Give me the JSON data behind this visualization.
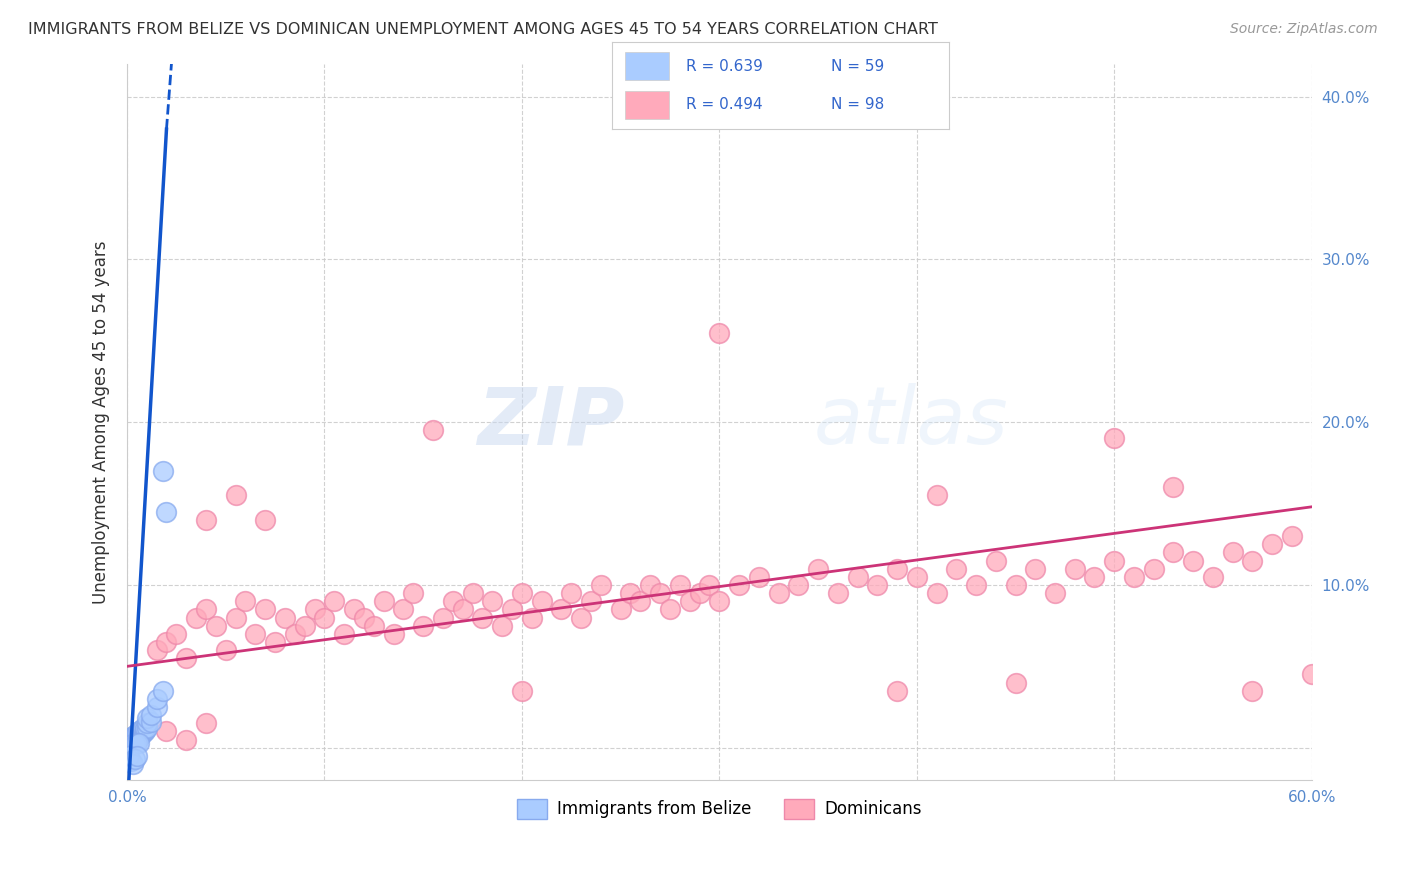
{
  "title": "IMMIGRANTS FROM BELIZE VS DOMINICAN UNEMPLOYMENT AMONG AGES 45 TO 54 YEARS CORRELATION CHART",
  "source": "Source: ZipAtlas.com",
  "ylabel": "Unemployment Among Ages 45 to 54 years",
  "xlim": [
    0.0,
    0.6
  ],
  "ylim": [
    -0.02,
    0.42
  ],
  "x_ticks": [
    0.0,
    0.1,
    0.2,
    0.3,
    0.4,
    0.5,
    0.6
  ],
  "x_tick_labels": [
    "0.0%",
    "",
    "",
    "",
    "",
    "",
    "60.0%"
  ],
  "y_ticks": [
    0.0,
    0.1,
    0.2,
    0.3,
    0.4
  ],
  "y_tick_labels": [
    "",
    "10.0%",
    "20.0%",
    "30.0%",
    "40.0%"
  ],
  "grid_color": "#cccccc",
  "background_color": "#ffffff",
  "belize_color": "#aaccff",
  "belize_edge_color": "#88aaee",
  "dominican_color": "#ffaabb",
  "dominican_edge_color": "#ee88aa",
  "belize_line_color": "#1155cc",
  "dominican_line_color": "#cc3377",
  "tick_color": "#5588cc",
  "legend_text_color": "#3366cc",
  "belize_scatter": [
    [
      0.001,
      0.002
    ],
    [
      0.001,
      0.003
    ],
    [
      0.001,
      0.004
    ],
    [
      0.002,
      0.002
    ],
    [
      0.002,
      0.003
    ],
    [
      0.002,
      0.004
    ],
    [
      0.002,
      0.005
    ],
    [
      0.002,
      0.006
    ],
    [
      0.003,
      0.003
    ],
    [
      0.003,
      0.004
    ],
    [
      0.003,
      0.005
    ],
    [
      0.003,
      0.006
    ],
    [
      0.003,
      0.007
    ],
    [
      0.004,
      0.004
    ],
    [
      0.004,
      0.005
    ],
    [
      0.004,
      0.006
    ],
    [
      0.004,
      0.007
    ],
    [
      0.004,
      0.008
    ],
    [
      0.005,
      0.005
    ],
    [
      0.005,
      0.006
    ],
    [
      0.005,
      0.007
    ],
    [
      0.005,
      0.008
    ],
    [
      0.005,
      0.009
    ],
    [
      0.006,
      0.006
    ],
    [
      0.006,
      0.007
    ],
    [
      0.006,
      0.008
    ],
    [
      0.006,
      0.009
    ],
    [
      0.006,
      0.01
    ],
    [
      0.007,
      0.008
    ],
    [
      0.007,
      0.009
    ],
    [
      0.007,
      0.01
    ],
    [
      0.007,
      0.011
    ],
    [
      0.008,
      0.009
    ],
    [
      0.008,
      0.01
    ],
    [
      0.008,
      0.011
    ],
    [
      0.008,
      0.012
    ],
    [
      0.009,
      0.01
    ],
    [
      0.009,
      0.011
    ],
    [
      0.009,
      0.012
    ],
    [
      0.01,
      0.012
    ],
    [
      0.01,
      0.015
    ],
    [
      0.01,
      0.018
    ],
    [
      0.012,
      0.016
    ],
    [
      0.012,
      0.02
    ],
    [
      0.015,
      0.025
    ],
    [
      0.015,
      0.03
    ],
    [
      0.018,
      0.035
    ],
    [
      0.018,
      0.17
    ],
    [
      0.02,
      0.145
    ],
    [
      0.001,
      0.001
    ],
    [
      0.002,
      0.001
    ],
    [
      0.003,
      0.002
    ],
    [
      0.004,
      0.002
    ],
    [
      0.005,
      0.003
    ],
    [
      0.006,
      0.003
    ],
    [
      0.001,
      -0.005
    ],
    [
      0.002,
      -0.008
    ],
    [
      0.003,
      -0.01
    ],
    [
      0.004,
      -0.007
    ],
    [
      0.005,
      -0.005
    ]
  ],
  "dominican_scatter": [
    [
      0.015,
      0.06
    ],
    [
      0.02,
      0.065
    ],
    [
      0.025,
      0.07
    ],
    [
      0.03,
      0.055
    ],
    [
      0.035,
      0.08
    ],
    [
      0.04,
      0.085
    ],
    [
      0.045,
      0.075
    ],
    [
      0.05,
      0.06
    ],
    [
      0.055,
      0.08
    ],
    [
      0.06,
      0.09
    ],
    [
      0.065,
      0.07
    ],
    [
      0.07,
      0.085
    ],
    [
      0.075,
      0.065
    ],
    [
      0.08,
      0.08
    ],
    [
      0.085,
      0.07
    ],
    [
      0.09,
      0.075
    ],
    [
      0.095,
      0.085
    ],
    [
      0.1,
      0.08
    ],
    [
      0.105,
      0.09
    ],
    [
      0.11,
      0.07
    ],
    [
      0.115,
      0.085
    ],
    [
      0.12,
      0.08
    ],
    [
      0.125,
      0.075
    ],
    [
      0.13,
      0.09
    ],
    [
      0.135,
      0.07
    ],
    [
      0.14,
      0.085
    ],
    [
      0.145,
      0.095
    ],
    [
      0.15,
      0.075
    ],
    [
      0.16,
      0.08
    ],
    [
      0.165,
      0.09
    ],
    [
      0.17,
      0.085
    ],
    [
      0.175,
      0.095
    ],
    [
      0.18,
      0.08
    ],
    [
      0.185,
      0.09
    ],
    [
      0.19,
      0.075
    ],
    [
      0.195,
      0.085
    ],
    [
      0.2,
      0.095
    ],
    [
      0.205,
      0.08
    ],
    [
      0.21,
      0.09
    ],
    [
      0.22,
      0.085
    ],
    [
      0.225,
      0.095
    ],
    [
      0.23,
      0.08
    ],
    [
      0.235,
      0.09
    ],
    [
      0.24,
      0.1
    ],
    [
      0.25,
      0.085
    ],
    [
      0.255,
      0.095
    ],
    [
      0.26,
      0.09
    ],
    [
      0.265,
      0.1
    ],
    [
      0.27,
      0.095
    ],
    [
      0.275,
      0.085
    ],
    [
      0.28,
      0.1
    ],
    [
      0.285,
      0.09
    ],
    [
      0.29,
      0.095
    ],
    [
      0.295,
      0.1
    ],
    [
      0.3,
      0.09
    ],
    [
      0.31,
      0.1
    ],
    [
      0.32,
      0.105
    ],
    [
      0.33,
      0.095
    ],
    [
      0.34,
      0.1
    ],
    [
      0.35,
      0.11
    ],
    [
      0.36,
      0.095
    ],
    [
      0.37,
      0.105
    ],
    [
      0.38,
      0.1
    ],
    [
      0.39,
      0.11
    ],
    [
      0.4,
      0.105
    ],
    [
      0.41,
      0.095
    ],
    [
      0.42,
      0.11
    ],
    [
      0.43,
      0.1
    ],
    [
      0.44,
      0.115
    ],
    [
      0.45,
      0.1
    ],
    [
      0.46,
      0.11
    ],
    [
      0.47,
      0.095
    ],
    [
      0.48,
      0.11
    ],
    [
      0.49,
      0.105
    ],
    [
      0.5,
      0.115
    ],
    [
      0.51,
      0.105
    ],
    [
      0.52,
      0.11
    ],
    [
      0.53,
      0.12
    ],
    [
      0.54,
      0.115
    ],
    [
      0.55,
      0.105
    ],
    [
      0.56,
      0.12
    ],
    [
      0.57,
      0.115
    ],
    [
      0.58,
      0.125
    ],
    [
      0.59,
      0.13
    ],
    [
      0.04,
      0.14
    ],
    [
      0.055,
      0.155
    ],
    [
      0.07,
      0.14
    ],
    [
      0.3,
      0.255
    ],
    [
      0.5,
      0.19
    ],
    [
      0.155,
      0.195
    ],
    [
      0.41,
      0.155
    ],
    [
      0.53,
      0.16
    ],
    [
      0.45,
      0.04
    ],
    [
      0.57,
      0.035
    ],
    [
      0.39,
      0.035
    ],
    [
      0.2,
      0.035
    ],
    [
      0.6,
      0.045
    ],
    [
      0.02,
      0.01
    ],
    [
      0.03,
      0.005
    ],
    [
      0.04,
      0.015
    ]
  ],
  "belize_trendline_solid": [
    [
      0.0,
      -0.04
    ],
    [
      0.02,
      0.38
    ]
  ],
  "belize_trendline_dashed": [
    [
      0.02,
      0.38
    ],
    [
      0.025,
      0.46
    ]
  ],
  "dominican_trendline": [
    [
      0.0,
      0.05
    ],
    [
      0.6,
      0.148
    ]
  ]
}
